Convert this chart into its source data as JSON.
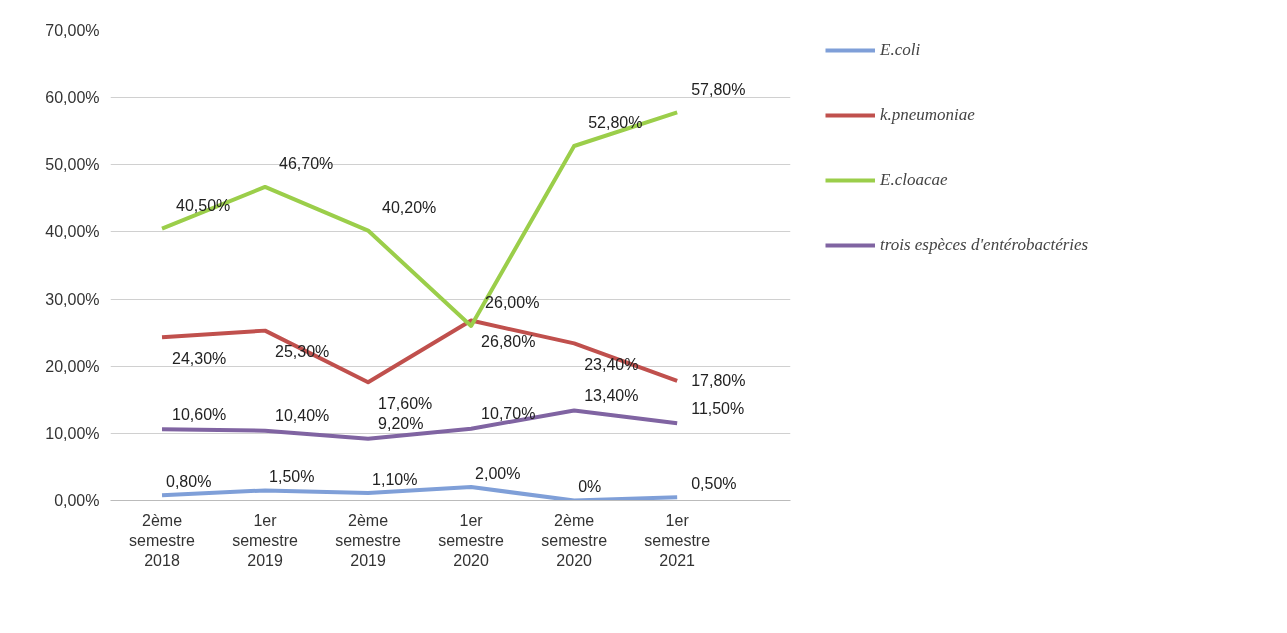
{
  "chart_data": {
    "type": "line",
    "categories": [
      "2ème semestre 2018",
      "1er semestre 2019",
      "2ème semestre 2019",
      "1er semestre 2020",
      "2ème semestre 2020",
      "1er semestre 2021"
    ],
    "series": [
      {
        "name": "E.coli",
        "color": "#7f9fd8",
        "values": [
          0.8,
          1.5,
          1.1,
          2.0,
          0,
          0.5
        ],
        "value_labels": [
          "0,80%",
          "1,50%",
          "1,10%",
          "2,00%",
          "0%",
          "0,50%"
        ]
      },
      {
        "name": "k.pneumoniae",
        "color": "#c0504d",
        "values": [
          24.3,
          25.3,
          17.6,
          26.8,
          23.4,
          17.8
        ],
        "value_labels": [
          "24,30%",
          "25,30%",
          "17,60%",
          "26,80%",
          "23,40%",
          "17,80%"
        ]
      },
      {
        "name": "E.cloacae",
        "color": "#9bce4a",
        "values": [
          40.5,
          46.7,
          40.2,
          26.0,
          52.8,
          57.8
        ],
        "value_labels": [
          "40,50%",
          "46,70%",
          "40,20%",
          "26,00%",
          "52,80%",
          "57,80%"
        ]
      },
      {
        "name": "trois espèces d'entérobactéries",
        "color": "#8064a2",
        "values": [
          10.6,
          10.4,
          9.2,
          10.7,
          13.4,
          11.5
        ],
        "value_labels": [
          "10,60%",
          "10,40%",
          "9,20%",
          "10,70%",
          "13,40%",
          "11,50%"
        ]
      }
    ],
    "ylim": [
      0,
      70
    ],
    "yticks": [
      {
        "value": 0,
        "label": "0,00%"
      },
      {
        "value": 10,
        "label": "10,00%"
      },
      {
        "value": 20,
        "label": "20,00%"
      },
      {
        "value": 30,
        "label": "30,00%"
      },
      {
        "value": 40,
        "label": "40,00%"
      },
      {
        "value": 50,
        "label": "50,00%"
      },
      {
        "value": 60,
        "label": "60,00%"
      },
      {
        "value": 70,
        "label": "70,00%"
      }
    ],
    "grid": "y",
    "legend": "right",
    "marker": "none",
    "line_style": "solid"
  }
}
